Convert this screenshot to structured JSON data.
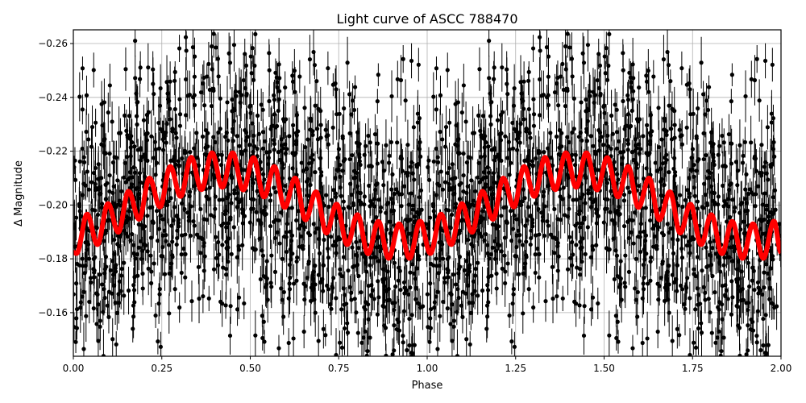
{
  "chart_data": {
    "type": "scatter",
    "title": "Light curve of ASCC 788470",
    "xlabel": "Phase",
    "ylabel": "Δ Magnitude",
    "xlim": [
      0,
      2
    ],
    "ylim": [
      -0.1438,
      -0.2651
    ],
    "y_inverted": true,
    "grid": true,
    "x_ticks": [
      0,
      0.25,
      0.5,
      0.75,
      1.0,
      1.25,
      1.5,
      1.75,
      2.0
    ],
    "x_tick_labels": [
      "0.00",
      "0.25",
      "0.50",
      "0.75",
      "1.00",
      "1.25",
      "1.50",
      "1.75",
      "2.00"
    ],
    "y_ticks": [
      -0.26,
      -0.24,
      -0.22,
      -0.2,
      -0.18,
      -0.16
    ],
    "y_tick_labels": [
      "−0.26",
      "−0.24",
      "−0.22",
      "−0.20",
      "−0.18",
      "−0.16"
    ],
    "observations": {
      "color": "#000000",
      "marker": "circle",
      "error_bars": true
    },
    "model_curve": {
      "color": "#ff0000",
      "x": [
        0.0,
        0.009,
        0.039,
        0.068,
        0.098,
        0.127,
        0.156,
        0.186,
        0.215,
        0.245,
        0.274,
        0.303,
        0.333,
        0.362,
        0.392,
        0.421,
        0.45,
        0.48,
        0.509,
        0.539,
        0.568,
        0.597,
        0.627,
        0.656,
        0.686,
        0.715,
        0.744,
        0.774,
        0.803,
        0.833,
        0.862,
        0.891,
        0.921,
        0.95,
        0.98,
        1.009,
        1.039,
        1.068,
        1.098,
        1.127,
        1.156,
        1.186,
        1.215,
        1.245,
        1.274,
        1.303,
        1.333,
        1.362,
        1.392,
        1.421,
        1.45,
        1.48,
        1.509,
        1.539,
        1.568,
        1.597,
        1.627,
        1.656,
        1.686,
        1.715,
        1.744,
        1.774,
        1.803,
        1.833,
        1.862,
        1.891,
        1.921,
        1.95,
        1.98,
        2.0
      ],
      "y": [
        -0.1824,
        -0.182,
        -0.1966,
        -0.1853,
        -0.2005,
        -0.1899,
        -0.2051,
        -0.1947,
        -0.21,
        -0.1993,
        -0.2143,
        -0.2032,
        -0.2177,
        -0.2057,
        -0.2194,
        -0.2066,
        -0.2194,
        -0.2056,
        -0.2176,
        -0.203,
        -0.2143,
        -0.1991,
        -0.21,
        -0.1945,
        -0.2049,
        -0.1896,
        -0.2003,
        -0.1853,
        -0.1964,
        -0.1819,
        -0.1939,
        -0.1802,
        -0.193,
        -0.1802,
        -0.194,
        -0.182,
        -0.1966,
        -0.1853,
        -0.2005,
        -0.1899,
        -0.2051,
        -0.1947,
        -0.21,
        -0.1993,
        -0.2143,
        -0.2032,
        -0.2177,
        -0.2057,
        -0.2194,
        -0.2066,
        -0.2194,
        -0.2056,
        -0.2176,
        -0.203,
        -0.2143,
        -0.1991,
        -0.21,
        -0.1945,
        -0.2049,
        -0.1896,
        -0.2003,
        -0.1853,
        -0.1964,
        -0.1819,
        -0.1939,
        -0.1802,
        -0.193,
        -0.1802,
        -0.194,
        -0.1824
      ]
    }
  }
}
